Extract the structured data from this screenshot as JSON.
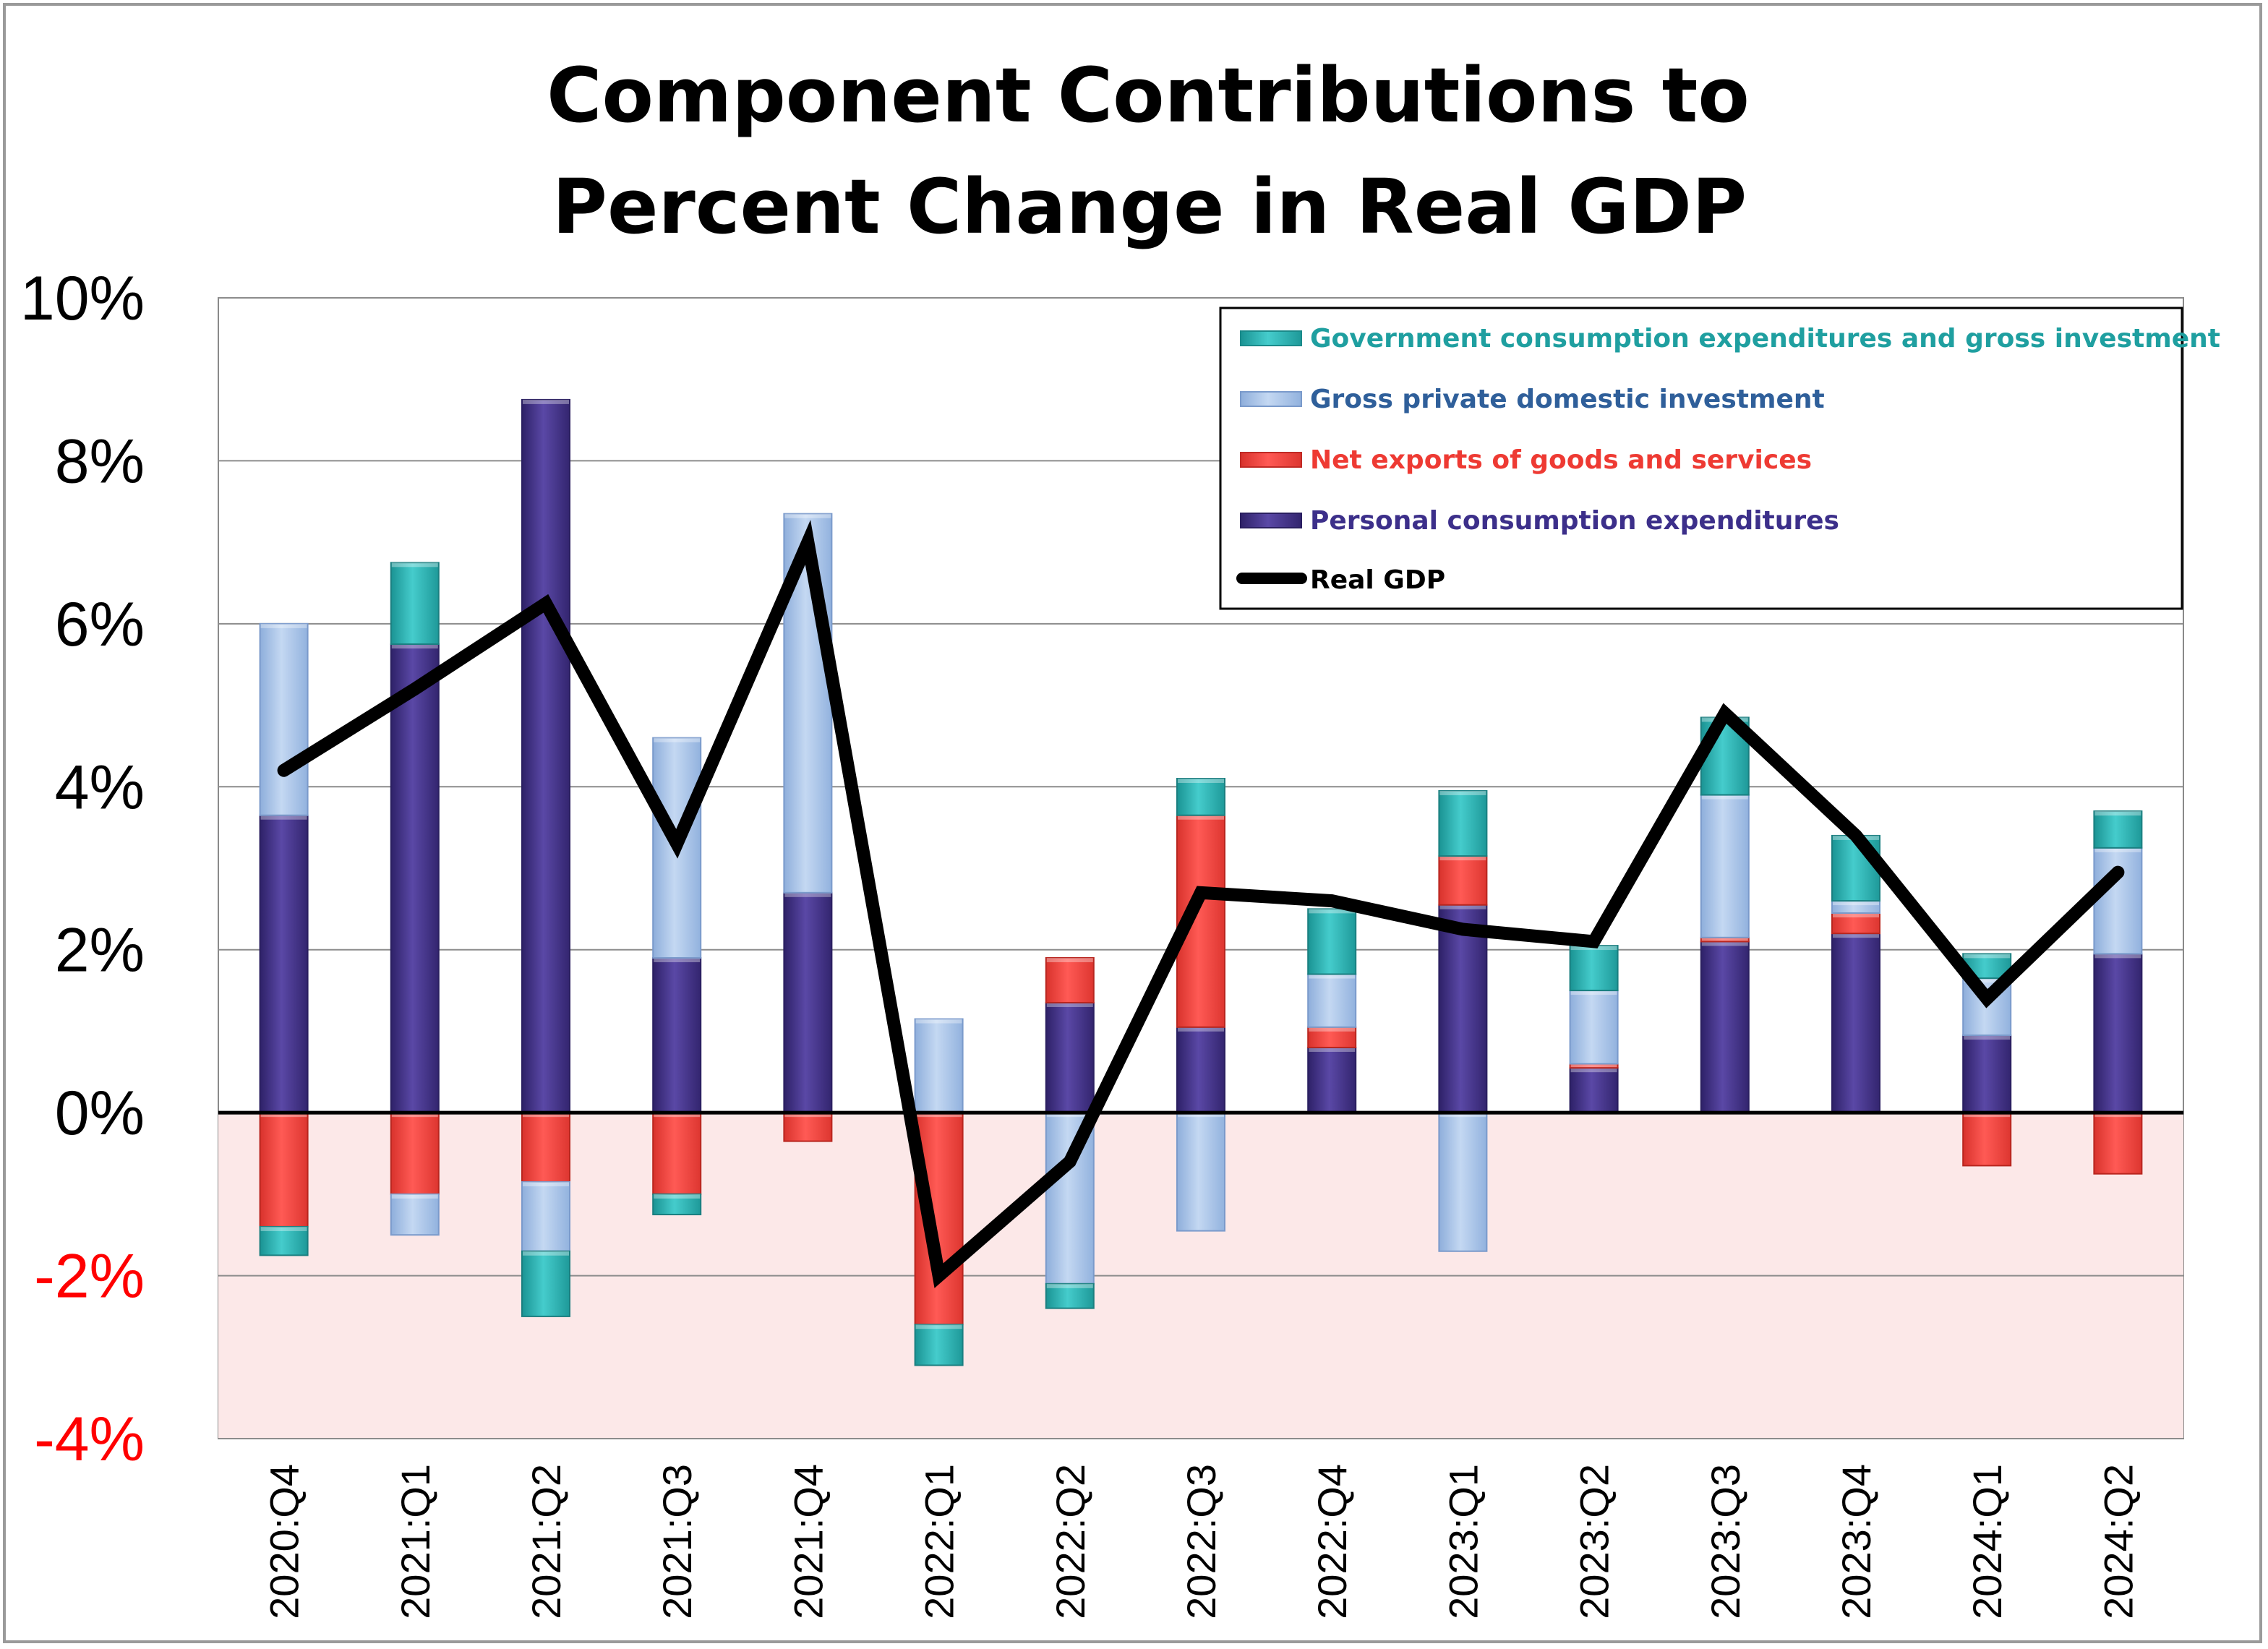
{
  "chart_data": {
    "type": "bar",
    "stacked": true,
    "title_lines": [
      "Component Contributions to",
      "Percent Change in Real GDP"
    ],
    "categories": [
      "2020:Q4",
      "2021:Q1",
      "2021:Q2",
      "2021:Q3",
      "2021:Q4",
      "2022:Q1",
      "2022:Q2",
      "2022:Q3",
      "2022:Q4",
      "2023:Q1",
      "2023:Q2",
      "2023:Q3",
      "2023:Q4",
      "2024:Q1",
      "2024:Q2"
    ],
    "ylim": [
      -4,
      10
    ],
    "yticks": [
      10,
      8,
      6,
      4,
      2,
      0,
      -2,
      -4
    ],
    "ytick_labels": [
      "10%",
      "8%",
      "6%",
      "4%",
      "2%",
      "0%",
      "-2%",
      "-4%"
    ],
    "negative_region_shaded": true,
    "grid": true,
    "legend_position": "top-right",
    "series": [
      {
        "name": "Personal consumption expenditures",
        "color": "#4b3a91",
        "text_color": "#3c2f8a",
        "values": [
          3.65,
          5.75,
          8.75,
          1.9,
          2.7,
          0.0,
          1.35,
          1.05,
          0.8,
          2.55,
          0.55,
          2.1,
          2.2,
          0.95,
          1.95
        ]
      },
      {
        "name": "Net exports of goods and services",
        "color": "#f04a45",
        "text_color": "#ee3a33",
        "values": [
          -1.4,
          -1.0,
          -0.85,
          -1.0,
          -0.35,
          -2.6,
          0.55,
          2.6,
          0.25,
          0.6,
          0.05,
          0.05,
          0.25,
          -0.65,
          -0.75
        ]
      },
      {
        "name": "Gross private domestic investment",
        "color": "#a9c4e8",
        "text_color": "#2f5f9a",
        "values": [
          2.35,
          -0.5,
          -0.85,
          2.7,
          4.65,
          1.15,
          -2.1,
          -1.45,
          0.65,
          -1.7,
          0.9,
          1.75,
          0.15,
          0.7,
          1.3
        ]
      },
      {
        "name": "Government consumption expenditures and gross investment",
        "color": "#2fb5b5",
        "text_color": "#1f9fa0",
        "values": [
          -0.35,
          1.0,
          -0.8,
          -0.25,
          0.0,
          -0.5,
          -0.3,
          0.45,
          0.8,
          0.8,
          0.55,
          0.95,
          0.8,
          0.3,
          0.45
        ]
      }
    ],
    "line_series": {
      "name": "Real GDP",
      "color": "#000000",
      "values": [
        4.2,
        5.2,
        6.25,
        3.3,
        7.0,
        -2.0,
        -0.6,
        2.7,
        2.6,
        2.25,
        2.1,
        4.9,
        3.4,
        1.4,
        2.95
      ]
    }
  }
}
